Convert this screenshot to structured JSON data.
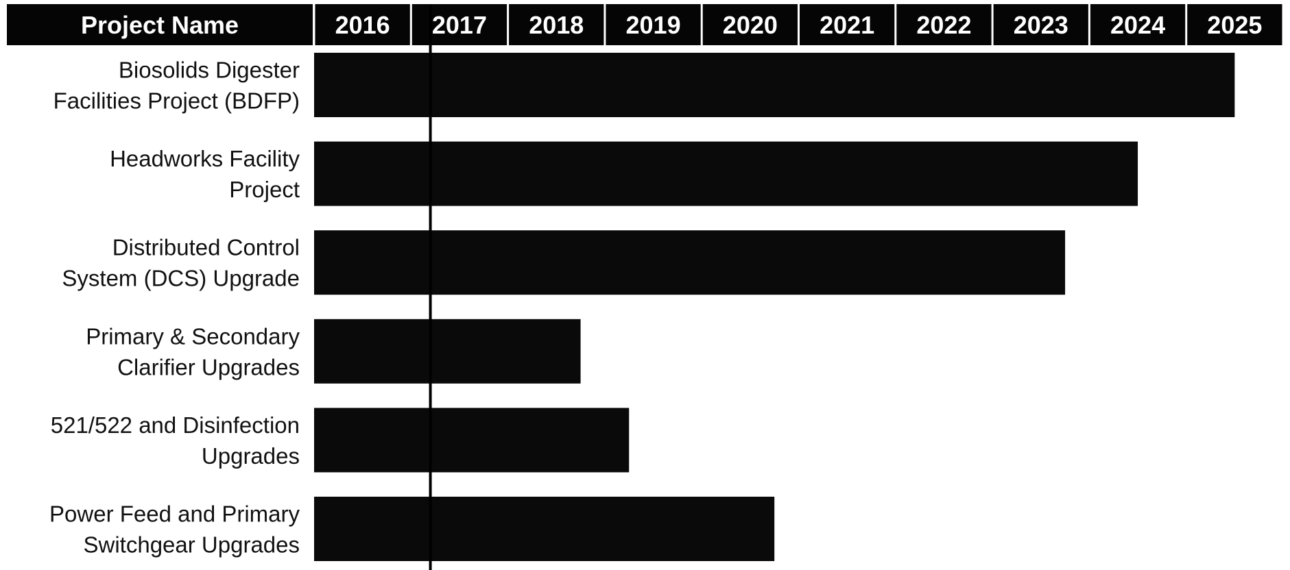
{
  "chart_data": {
    "type": "gantt",
    "header_label": "Project Name",
    "years": [
      "2016",
      "2017",
      "2018",
      "2019",
      "2020",
      "2021",
      "2022",
      "2023",
      "2024",
      "2025"
    ],
    "x_range": [
      2016.0,
      2026.0
    ],
    "marker_year": 2017.2,
    "bar_color": "#0a0a0a",
    "header_color": "#050505",
    "projects": [
      {
        "label_lines": [
          "Biosolids Digester",
          "Facilities Project (BDFP)"
        ],
        "start": 2016.0,
        "end": 2025.5
      },
      {
        "label_lines": [
          "Headworks Facility",
          "Project"
        ],
        "start": 2016.0,
        "end": 2024.5
      },
      {
        "label_lines": [
          "Distributed Control",
          "System (DCS) Upgrade"
        ],
        "start": 2016.0,
        "end": 2023.75
      },
      {
        "label_lines": [
          "Primary & Secondary",
          "Clarifier Upgrades"
        ],
        "start": 2016.0,
        "end": 2018.75
      },
      {
        "label_lines": [
          "521/522 and Disinfection",
          "Upgrades"
        ],
        "start": 2016.0,
        "end": 2019.25
      },
      {
        "label_lines": [
          "Power Feed and Primary",
          "Switchgear Upgrades"
        ],
        "start": 2016.0,
        "end": 2020.75
      }
    ]
  }
}
